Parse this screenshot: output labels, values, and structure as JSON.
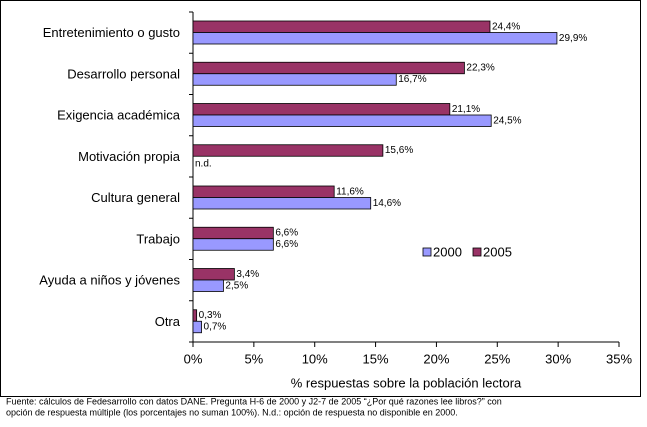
{
  "chart_data": {
    "type": "bar",
    "orientation": "horizontal",
    "categories": [
      "Entretenimiento o gusto",
      "Desarrollo personal",
      "Exigencia académica",
      "Motivación propia",
      "Cultura general",
      "Trabajo",
      "Ayuda a niños y jóvenes",
      "Otra"
    ],
    "series": [
      {
        "name": "2000",
        "color": "#9999ff",
        "values": [
          29.9,
          16.7,
          24.5,
          null,
          14.6,
          6.6,
          2.5,
          0.7
        ],
        "value_labels": [
          "29,9%",
          "16,7%",
          "24,5%",
          "n.d.",
          "14,6%",
          "6,6%",
          "2,5%",
          "0,7%"
        ]
      },
      {
        "name": "2005",
        "color": "#993366",
        "values": [
          24.4,
          22.3,
          21.1,
          15.6,
          11.6,
          6.6,
          3.4,
          0.3
        ],
        "value_labels": [
          "24,4%",
          "22,3%",
          "21,1%",
          "15,6%",
          "11,6%",
          "6,6%",
          "3,4%",
          "0,3%"
        ]
      }
    ],
    "xlim": [
      0,
      35
    ],
    "xticks": [
      {
        "value": 0,
        "label": "0%"
      },
      {
        "value": 5,
        "label": "5%"
      },
      {
        "value": 10,
        "label": "10%"
      },
      {
        "value": 15,
        "label": "15%"
      },
      {
        "value": 20,
        "label": "20%"
      },
      {
        "value": 25,
        "label": "25%"
      },
      {
        "value": 30,
        "label": "30%"
      },
      {
        "value": 35,
        "label": "35%"
      }
    ],
    "xlabel": "% respuestas sobre la población lectora",
    "legend": "right",
    "note": [
      "Fuente: cálculos de Fedesarrollo con datos DANE. Pregunta H-6 de 2000 y J2-7 de 2005 “¿Por qué razones lee libros?” con",
      "opción de respuesta múltiple (los porcentajes no suman 100%). N.d.: opción de respuesta no disponible en 2000."
    ]
  }
}
